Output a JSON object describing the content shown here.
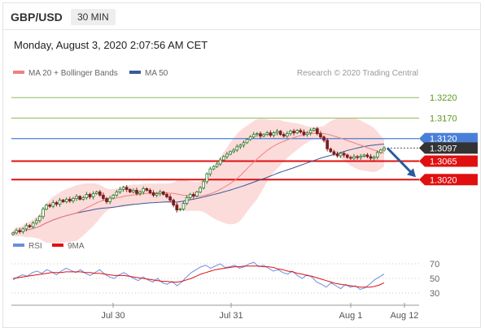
{
  "header": {
    "symbol": "GBP/USD",
    "timeframe": "30 MIN"
  },
  "date_line": "Monday, August 3, 2020 2:07:56 AM CET",
  "legend": {
    "ma20_bb": "MA 20 + Bollinger Bands",
    "ma50": "MA 50",
    "rsi": "RSI",
    "ma9": "9MA",
    "credit": "Research © 2020 Trading Central"
  },
  "colors": {
    "ma20": "#f08080",
    "bb_fill": "#fbd5d5",
    "ma50": "#3a5a98",
    "candle_up": "#2d7a2d",
    "candle_dn": "#7a1e1e",
    "level_green": "#8fbc5a",
    "level_blue": "#4a7fd8",
    "level_red": "#e01010",
    "label_green_text": "#5a9a1a",
    "last_price_bg": "#333333",
    "arrow": "#2a5a9a",
    "rsi_line": "#6a8de0",
    "rsi_ma": "#e01010"
  },
  "chart_data": [
    {
      "type": "candlestick",
      "title": "GBP/USD 30 MIN",
      "ylim": [
        1.288,
        1.326
      ],
      "x_ticks": [
        "Jul 30",
        "Jul 31",
        "Aug 1",
        "Aug 12"
      ],
      "levels": [
        {
          "value": 1.322,
          "label": "1.3220",
          "style": "resistance-green"
        },
        {
          "value": 1.317,
          "label": "1.3170",
          "style": "resistance-green"
        },
        {
          "value": 1.312,
          "label": "1.3120",
          "style": "pivot-blue"
        },
        {
          "value": 1.3065,
          "label": "1.3065",
          "style": "support-red"
        },
        {
          "value": 1.302,
          "label": "1.3020",
          "style": "support-red"
        }
      ],
      "last_price": {
        "value": 1.3097,
        "label": "1.3097"
      },
      "forecast": {
        "from": 1.3097,
        "to": 1.302,
        "direction": "down"
      },
      "close": [
        1.289,
        1.2896,
        1.2893,
        1.29,
        1.2908,
        1.2905,
        1.2914,
        1.292,
        1.293,
        1.2948,
        1.2958,
        1.2955,
        1.2964,
        1.296,
        1.297,
        1.2966,
        1.2972,
        1.2968,
        1.2974,
        1.2979,
        1.2972,
        1.2976,
        1.2984,
        1.2978,
        1.2986,
        1.299,
        1.2982,
        1.2974,
        1.2966,
        1.2975,
        1.2982,
        1.299,
        1.2996,
        1.3001,
        1.2996,
        1.299,
        1.2994,
        1.2986,
        1.299,
        1.2998,
        1.2994,
        1.2988,
        1.2982,
        1.2986,
        1.299,
        1.2984,
        1.2978,
        1.297,
        1.2958,
        1.2946,
        1.2948,
        1.2962,
        1.2976,
        1.2984,
        1.298,
        1.299,
        1.3,
        1.3015,
        1.3034,
        1.3046,
        1.3052,
        1.3058,
        1.3068,
        1.3076,
        1.3082,
        1.3088,
        1.3092,
        1.31,
        1.3104,
        1.311,
        1.3118,
        1.3124,
        1.313,
        1.3132,
        1.3126,
        1.313,
        1.3134,
        1.3128,
        1.3134,
        1.3138,
        1.313,
        1.3126,
        1.3132,
        1.3138,
        1.3134,
        1.314,
        1.3136,
        1.313,
        1.3134,
        1.314,
        1.3144,
        1.3132,
        1.3124,
        1.3116,
        1.3095,
        1.3088,
        1.3082,
        1.3078,
        1.3084,
        1.308,
        1.3074,
        1.3072,
        1.3076,
        1.3074,
        1.3077,
        1.308,
        1.3076,
        1.3072,
        1.3075,
        1.3086,
        1.3092,
        1.3097
      ]
    },
    {
      "type": "line",
      "title": "",
      "ylim": [
        20,
        80
      ],
      "y_ticks": [
        30,
        50,
        70
      ],
      "series": [
        {
          "name": "RSI",
          "values": [
            48,
            52,
            55,
            53,
            58,
            60,
            57,
            62,
            59,
            55,
            60,
            64,
            61,
            58,
            62,
            57,
            54,
            58,
            62,
            56,
            52,
            50,
            55,
            58,
            54,
            50,
            47,
            52,
            48,
            45,
            50,
            44,
            42,
            46,
            40,
            45,
            52,
            58,
            62,
            66,
            68,
            64,
            67,
            70,
            65,
            66,
            68,
            64,
            66,
            70,
            72,
            66,
            68,
            64,
            60,
            62,
            58,
            56,
            60,
            54,
            50,
            55,
            52,
            45,
            42,
            38,
            44,
            40,
            36,
            42,
            38,
            40,
            35,
            37,
            42,
            48,
            52,
            56
          ]
        },
        {
          "name": "9MA",
          "values": [
            50,
            51,
            52,
            53,
            54,
            55,
            56,
            57,
            58,
            58,
            58,
            59,
            59,
            59,
            59,
            58,
            58,
            57,
            57,
            56,
            55,
            54,
            54,
            54,
            53,
            52,
            51,
            50,
            49,
            48,
            47,
            46,
            46,
            45,
            45,
            46,
            48,
            50,
            53,
            56,
            58,
            60,
            62,
            63,
            64,
            65,
            66,
            66,
            67,
            67,
            67,
            67,
            66,
            66,
            65,
            63,
            62,
            60,
            59,
            57,
            56,
            54,
            53,
            51,
            49,
            47,
            45,
            43,
            42,
            41,
            40,
            39,
            38,
            38,
            38,
            39,
            41,
            44
          ]
        }
      ]
    }
  ]
}
